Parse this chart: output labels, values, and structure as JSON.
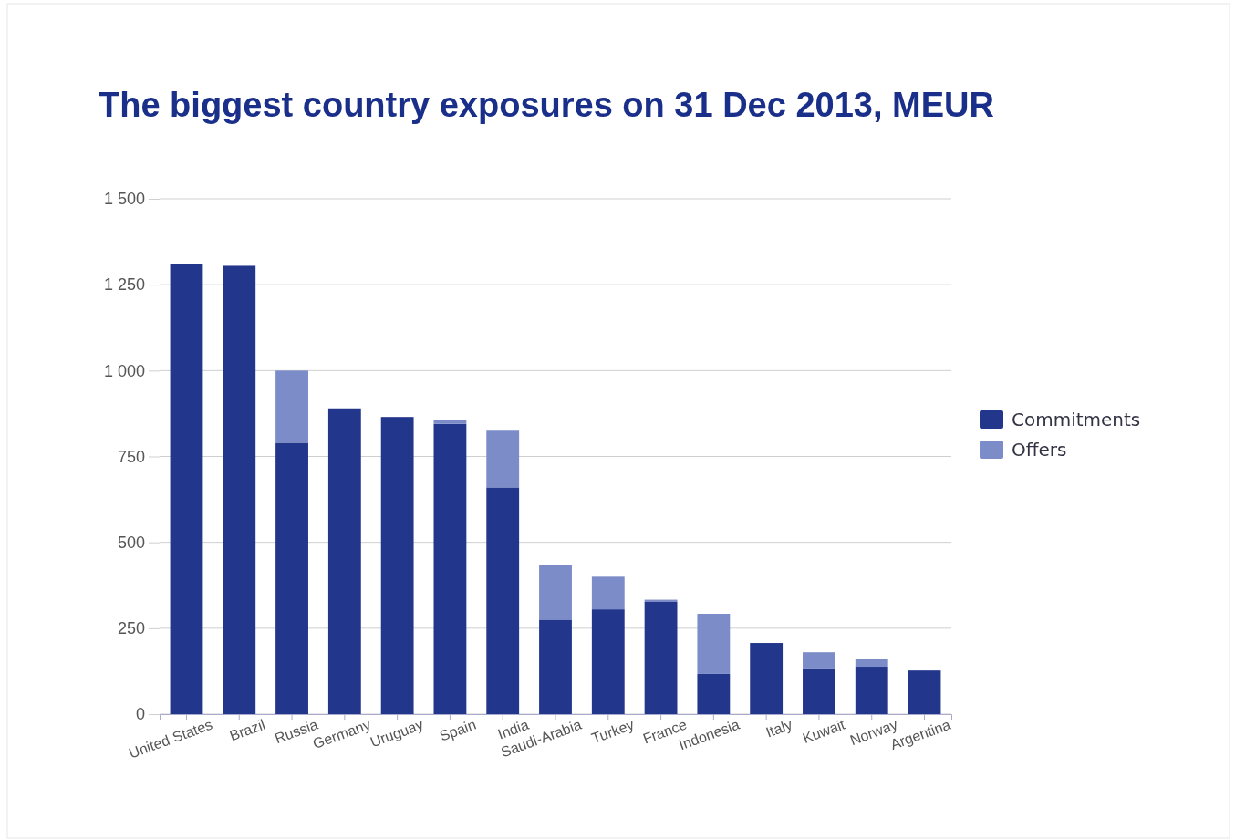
{
  "chart_data": {
    "type": "bar",
    "title": "The biggest country exposures on 31 Dec 2013, MEUR",
    "stacked": true,
    "categories": [
      "United States",
      "Brazil",
      "Russia",
      "Germany",
      "Uruguay",
      "Spain",
      "India",
      "Saudi-Arabia",
      "Turkey",
      "France",
      "Indonesia",
      "Italy",
      "Kuwait",
      "Norway",
      "Argentina"
    ],
    "series": [
      {
        "name": "Commitments",
        "color": "#22368c",
        "values": [
          1310,
          1305,
          790,
          890,
          865,
          845,
          660,
          275,
          305,
          328,
          117,
          207,
          133,
          138,
          127
        ]
      },
      {
        "name": "Offers",
        "color": "#7b8cc8",
        "values": [
          0,
          0,
          210,
          0,
          0,
          10,
          165,
          160,
          95,
          5,
          175,
          0,
          47,
          24,
          0
        ]
      }
    ],
    "ylim": [
      0,
      1500
    ],
    "yticks": [
      0,
      250,
      500,
      750,
      {
        "value": 1000,
        "label": "1 000"
      },
      {
        "value": 1250,
        "label": "1 250"
      },
      {
        "value": 1500,
        "label": "1 500"
      }
    ],
    "grid": "y",
    "legend": "right"
  }
}
